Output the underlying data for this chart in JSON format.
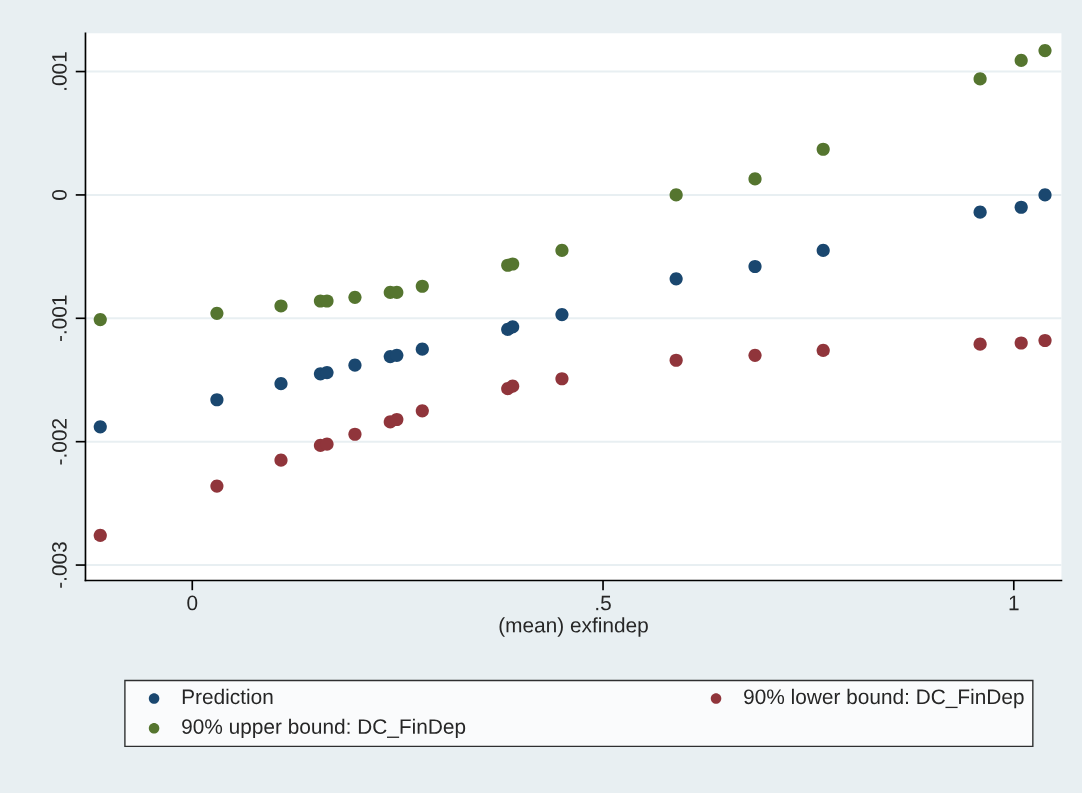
{
  "chart_data": {
    "type": "scatter",
    "xlabel": "(mean) exfindep",
    "x": [
      -0.112,
      0.03,
      0.108,
      0.156,
      0.164,
      0.198,
      0.241,
      0.249,
      0.28,
      0.384,
      0.39,
      0.45,
      0.589,
      0.685,
      0.768,
      0.959,
      1.009,
      1.038
    ],
    "series": [
      {
        "name": "Prediction",
        "color": "#1a476f",
        "values": [
          -0.00188,
          -0.00166,
          -0.00153,
          -0.00145,
          -0.00144,
          -0.00138,
          -0.00131,
          -0.0013,
          -0.00125,
          -0.00109,
          -0.00107,
          -0.00097,
          -0.00068,
          -0.00058,
          -0.00045,
          -0.00014,
          -0.0001,
          0
        ]
      },
      {
        "name": "90% lower bound: DC_FinDep",
        "color": "#90353b",
        "values": [
          -0.00276,
          -0.00236,
          -0.00215,
          -0.00203,
          -0.00202,
          -0.00194,
          -0.00184,
          -0.00182,
          -0.00175,
          -0.00157,
          -0.00155,
          -0.00149,
          -0.00134,
          -0.0013,
          -0.00126,
          -0.00121,
          -0.0012,
          -0.00118
        ]
      },
      {
        "name": "90% upper bound: DC_FinDep",
        "color": "#55752f",
        "values": [
          -0.00101,
          -0.00096,
          -0.0009,
          -0.00086,
          -0.00086,
          -0.00083,
          -0.00079,
          -0.00079,
          -0.00074,
          -0.00057,
          -0.00056,
          -0.00045,
          0,
          0.00013,
          0.00037,
          0.00094,
          0.00109,
          0.00117
        ]
      }
    ],
    "xlim": [
      -0.13,
      1.058
    ],
    "ylim": [
      -0.003125,
      0.00131
    ],
    "xticks": [
      0,
      {
        "value": 0.5,
        "label": ".5"
      },
      1
    ],
    "yticks": [
      {
        "value": -0.003,
        "label": "-.003"
      },
      {
        "value": -0.002,
        "label": "-.002"
      },
      {
        "value": -0.001,
        "label": "-.001"
      },
      0,
      {
        "value": 0.001,
        "label": ".001"
      }
    ],
    "grid": "y",
    "legend": "bottom",
    "marker": "circle"
  }
}
